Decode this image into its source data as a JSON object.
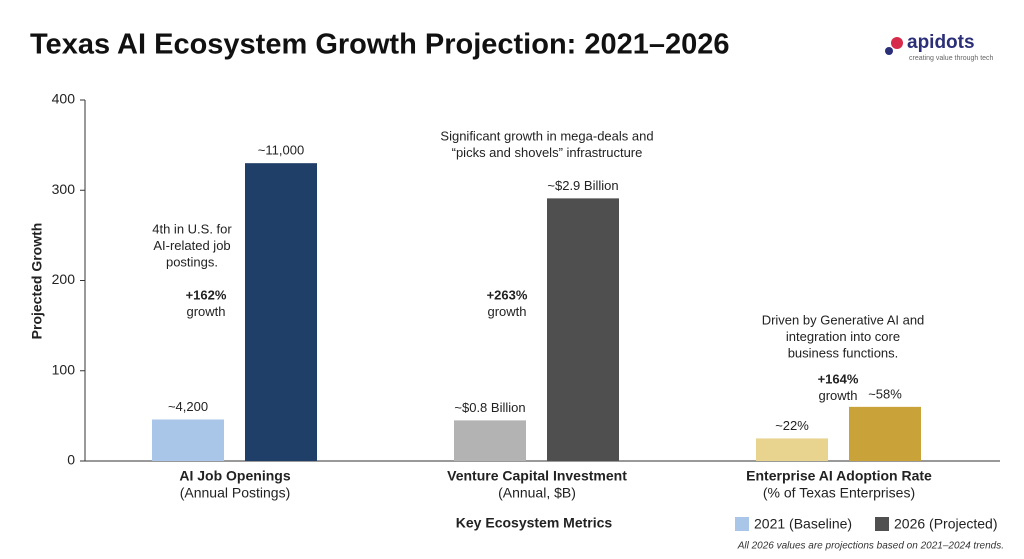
{
  "brand": {
    "name": "apidots",
    "tagline": "creating value through tech"
  },
  "chart_data": {
    "type": "bar",
    "title": "Texas AI Ecosystem Growth Projection: 2021–2026",
    "y_label": "Projected Growth",
    "x_label": "Key Ecosystem Metrics",
    "footnote": "All 2026 values are projections based on 2021–2024 trends.",
    "categories": [
      "AI Job Openings",
      "Venture Capital Investment",
      "Enterprise AI Adoption Rate"
    ],
    "category_subtitles": [
      "(Annual Postings)",
      "(Annual, $B)",
      "(% of Texas Enterprises)"
    ],
    "series": [
      {
        "name": "2021 (Baseline)",
        "color": "#a9c6e8",
        "colors": [
          "#a9c6e8",
          "#b3b3b3",
          "#e8d38f"
        ],
        "values": [
          46,
          45,
          25
        ],
        "bar_labels": [
          "~4,200",
          "~$0.8 Billion",
          "~22%"
        ]
      },
      {
        "name": "2026 (Projected)",
        "color": "#505050",
        "colors": [
          "#1f3e68",
          "#4f4f4f",
          "#c9a23a"
        ],
        "values": [
          330,
          291,
          60
        ],
        "bar_labels": [
          "~11,000",
          "~$2.9 Billion",
          "~58%"
        ]
      }
    ],
    "group_notes": [
      {
        "note": [
          "4th in U.S. for",
          "AI-related job",
          "postings."
        ],
        "growth": [
          "+162%",
          "growth"
        ]
      },
      {
        "note": [
          "Significant growth in mega-deals and",
          "“picks and shovels” infrastructure"
        ],
        "growth": [
          "+263%",
          "growth"
        ]
      },
      {
        "note": [
          "Driven by Generative AI and",
          "integration into core",
          "business functions."
        ],
        "growth": [
          "+164%",
          "growth"
        ]
      }
    ],
    "ylim": [
      0,
      400
    ],
    "yticks": [
      0,
      100,
      200,
      300,
      400
    ],
    "grid": false
  }
}
